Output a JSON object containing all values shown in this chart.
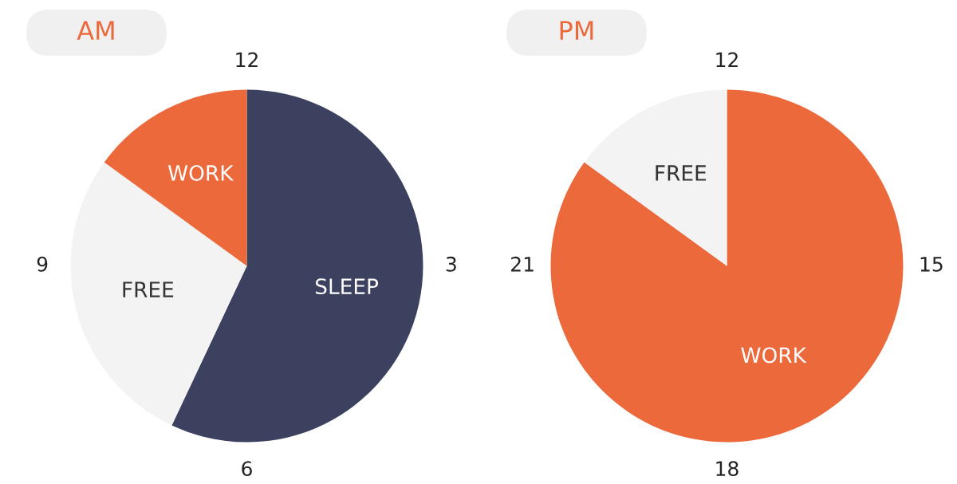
{
  "chart_data": [
    {
      "type": "pie",
      "title": "AM",
      "categories": [
        "SLEEP",
        "FREE",
        "WORK"
      ],
      "values": [
        57,
        28,
        15
      ],
      "colors": [
        "#3c4160",
        "#f3f3f3",
        "#ec693b"
      ],
      "annotations": [
        "12",
        "3",
        "6",
        "9"
      ]
    },
    {
      "type": "pie",
      "title": "PM",
      "categories": [
        "WORK",
        "FREE"
      ],
      "values": [
        85,
        15
      ],
      "colors": [
        "#ec693b",
        "#f3f3f3"
      ],
      "annotations": [
        "12",
        "15",
        "18",
        "21"
      ]
    }
  ]
}
